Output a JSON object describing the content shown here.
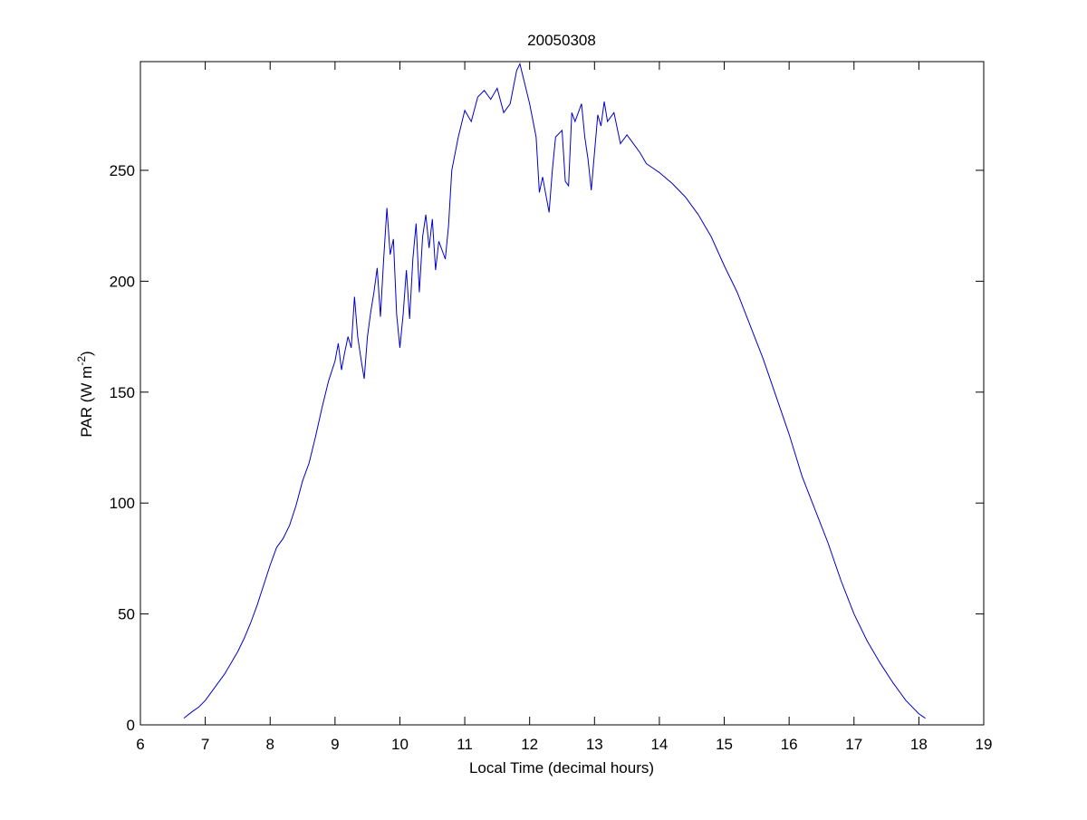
{
  "chart_data": {
    "type": "line",
    "title": "20050308",
    "xlabel": "Local Time (decimal hours)",
    "ylabel": {
      "text": "PAR (W m",
      "superscript": "-2",
      "suffix": ")"
    },
    "x": [
      6.67,
      6.8,
      6.9,
      7.0,
      7.1,
      7.2,
      7.3,
      7.4,
      7.5,
      7.6,
      7.7,
      7.8,
      7.9,
      8.0,
      8.1,
      8.2,
      8.3,
      8.4,
      8.5,
      8.6,
      8.7,
      8.8,
      8.9,
      9.0,
      9.05,
      9.1,
      9.15,
      9.2,
      9.25,
      9.3,
      9.35,
      9.4,
      9.45,
      9.5,
      9.55,
      9.6,
      9.65,
      9.7,
      9.75,
      9.8,
      9.85,
      9.9,
      9.95,
      10.0,
      10.05,
      10.1,
      10.15,
      10.2,
      10.25,
      10.3,
      10.35,
      10.4,
      10.45,
      10.5,
      10.55,
      10.6,
      10.7,
      10.75,
      10.8,
      10.9,
      11.0,
      11.1,
      11.2,
      11.3,
      11.4,
      11.5,
      11.6,
      11.7,
      11.8,
      11.85,
      11.9,
      12.0,
      12.1,
      12.15,
      12.2,
      12.3,
      12.35,
      12.4,
      12.5,
      12.55,
      12.6,
      12.65,
      12.7,
      12.8,
      12.85,
      12.9,
      12.95,
      13.0,
      13.05,
      13.1,
      13.15,
      13.2,
      13.3,
      13.4,
      13.5,
      13.6,
      13.7,
      13.8,
      13.9,
      14.0,
      14.2,
      14.4,
      14.6,
      14.8,
      15.0,
      15.2,
      15.4,
      15.6,
      15.8,
      16.0,
      16.2,
      16.4,
      16.6,
      16.8,
      17.0,
      17.2,
      17.4,
      17.6,
      17.8,
      18.0,
      18.1
    ],
    "series": [
      {
        "color": "#0000cc",
        "values": [
          3,
          6,
          8,
          11,
          15,
          19,
          23,
          28,
          33,
          39,
          46,
          54,
          63,
          72,
          80,
          84,
          90,
          99,
          110,
          118,
          130,
          143,
          155,
          164,
          172,
          160,
          168,
          175,
          170,
          193,
          175,
          165,
          156,
          175,
          186,
          195,
          206,
          184,
          210,
          233,
          212,
          219,
          185,
          170,
          185,
          205,
          183,
          210,
          226,
          195,
          220,
          230,
          215,
          228,
          205,
          218,
          210,
          225,
          250,
          265,
          277,
          272,
          283,
          286,
          282,
          287,
          276,
          280,
          295,
          298,
          292,
          280,
          265,
          240,
          247,
          231,
          250,
          265,
          268,
          245,
          243,
          276,
          272,
          280,
          265,
          255,
          241,
          258,
          275,
          270,
          281,
          272,
          276,
          262,
          266,
          262,
          258,
          253,
          251,
          249,
          244,
          238,
          230,
          220,
          207,
          195,
          180,
          165,
          148,
          131,
          112,
          97,
          82,
          65,
          50,
          38,
          28,
          19,
          11,
          5,
          3
        ]
      }
    ],
    "xlim": [
      6,
      19
    ],
    "ylim": [
      0,
      299
    ],
    "xticks": [
      6,
      7,
      8,
      9,
      10,
      11,
      12,
      13,
      14,
      15,
      16,
      17,
      18,
      19
    ],
    "yticks": [
      0,
      50,
      100,
      150,
      200,
      250
    ]
  }
}
